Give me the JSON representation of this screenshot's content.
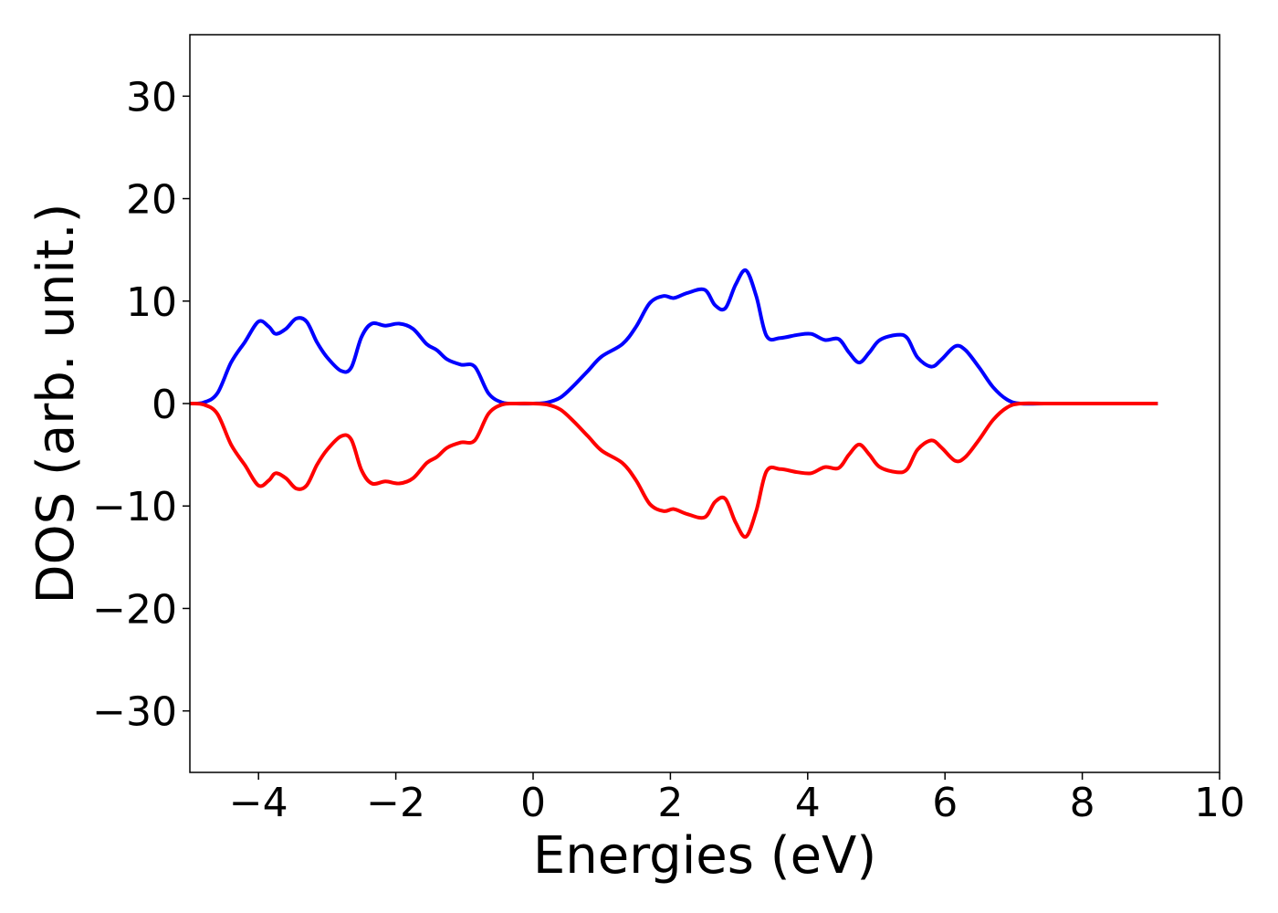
{
  "chart_data": {
    "type": "line",
    "title": "",
    "xlabel": "Energies (eV)",
    "ylabel": "DOS (arb. unit.)",
    "xlim": [
      -5,
      10
    ],
    "ylim": [
      -36,
      36
    ],
    "xticks": [
      -4,
      -2,
      0,
      2,
      4,
      6,
      8,
      10
    ],
    "xtick_labels": [
      "−4",
      "−2",
      "0",
      "2",
      "4",
      "6",
      "8",
      "10"
    ],
    "yticks": [
      30,
      20,
      10,
      0,
      -10,
      -20,
      -30
    ],
    "ytick_labels": [
      "30",
      "20",
      "10",
      "0",
      "−10",
      "−20",
      "−30"
    ],
    "grid": false,
    "legend": "none",
    "x": [
      -5.0,
      -4.8,
      -4.6,
      -4.4,
      -4.2,
      -4.0,
      -3.85,
      -3.75,
      -3.6,
      -3.45,
      -3.3,
      -3.15,
      -3.0,
      -2.8,
      -2.65,
      -2.5,
      -2.35,
      -2.15,
      -1.95,
      -1.75,
      -1.55,
      -1.4,
      -1.25,
      -1.05,
      -0.85,
      -0.65,
      -0.45,
      -0.25,
      0.0,
      0.2,
      0.4,
      0.6,
      0.8,
      1.0,
      1.3,
      1.5,
      1.7,
      1.9,
      2.05,
      2.25,
      2.5,
      2.65,
      2.8,
      2.95,
      3.1,
      3.25,
      3.4,
      3.6,
      3.85,
      4.05,
      4.25,
      4.45,
      4.6,
      4.75,
      4.9,
      5.05,
      5.3,
      5.45,
      5.6,
      5.8,
      5.95,
      6.15,
      6.3,
      6.5,
      6.7,
      6.9,
      7.1,
      7.5,
      8.0,
      8.5,
      9.1
    ],
    "series": [
      {
        "color": "#0000ff",
        "values": [
          0.0,
          0.1,
          1.0,
          4.0,
          6.0,
          8.0,
          7.5,
          6.8,
          7.3,
          8.3,
          8.0,
          6.0,
          4.5,
          3.2,
          3.5,
          6.5,
          7.8,
          7.6,
          7.8,
          7.3,
          5.8,
          5.2,
          4.3,
          3.8,
          3.6,
          1.0,
          0.1,
          0.0,
          0.0,
          0.1,
          0.6,
          1.8,
          3.2,
          4.6,
          5.8,
          7.5,
          9.8,
          10.5,
          10.3,
          10.8,
          11.1,
          9.6,
          9.3,
          11.6,
          13.0,
          10.5,
          6.6,
          6.4,
          6.7,
          6.8,
          6.2,
          6.3,
          5.0,
          4.0,
          5.0,
          6.2,
          6.7,
          6.4,
          4.5,
          3.6,
          4.3,
          5.6,
          5.2,
          3.5,
          1.6,
          0.4,
          0.0,
          0.0,
          0.0,
          0.0,
          0.0
        ]
      },
      {
        "color": "#ff0000",
        "values": [
          0.0,
          -0.1,
          -1.0,
          -4.0,
          -6.0,
          -8.0,
          -7.5,
          -6.8,
          -7.3,
          -8.3,
          -8.0,
          -6.0,
          -4.5,
          -3.2,
          -3.5,
          -6.5,
          -7.8,
          -7.6,
          -7.8,
          -7.3,
          -5.8,
          -5.2,
          -4.3,
          -3.8,
          -3.6,
          -1.0,
          -0.1,
          0.0,
          0.0,
          -0.1,
          -0.6,
          -1.8,
          -3.2,
          -4.6,
          -5.8,
          -7.5,
          -9.8,
          -10.5,
          -10.3,
          -10.8,
          -11.1,
          -9.6,
          -9.3,
          -11.6,
          -13.0,
          -10.5,
          -6.6,
          -6.4,
          -6.7,
          -6.8,
          -6.2,
          -6.3,
          -5.0,
          -4.0,
          -5.0,
          -6.2,
          -6.7,
          -6.4,
          -4.5,
          -3.6,
          -4.3,
          -5.6,
          -5.2,
          -3.5,
          -1.6,
          -0.4,
          0.0,
          0.0,
          0.0,
          0.0,
          0.0
        ]
      }
    ]
  }
}
